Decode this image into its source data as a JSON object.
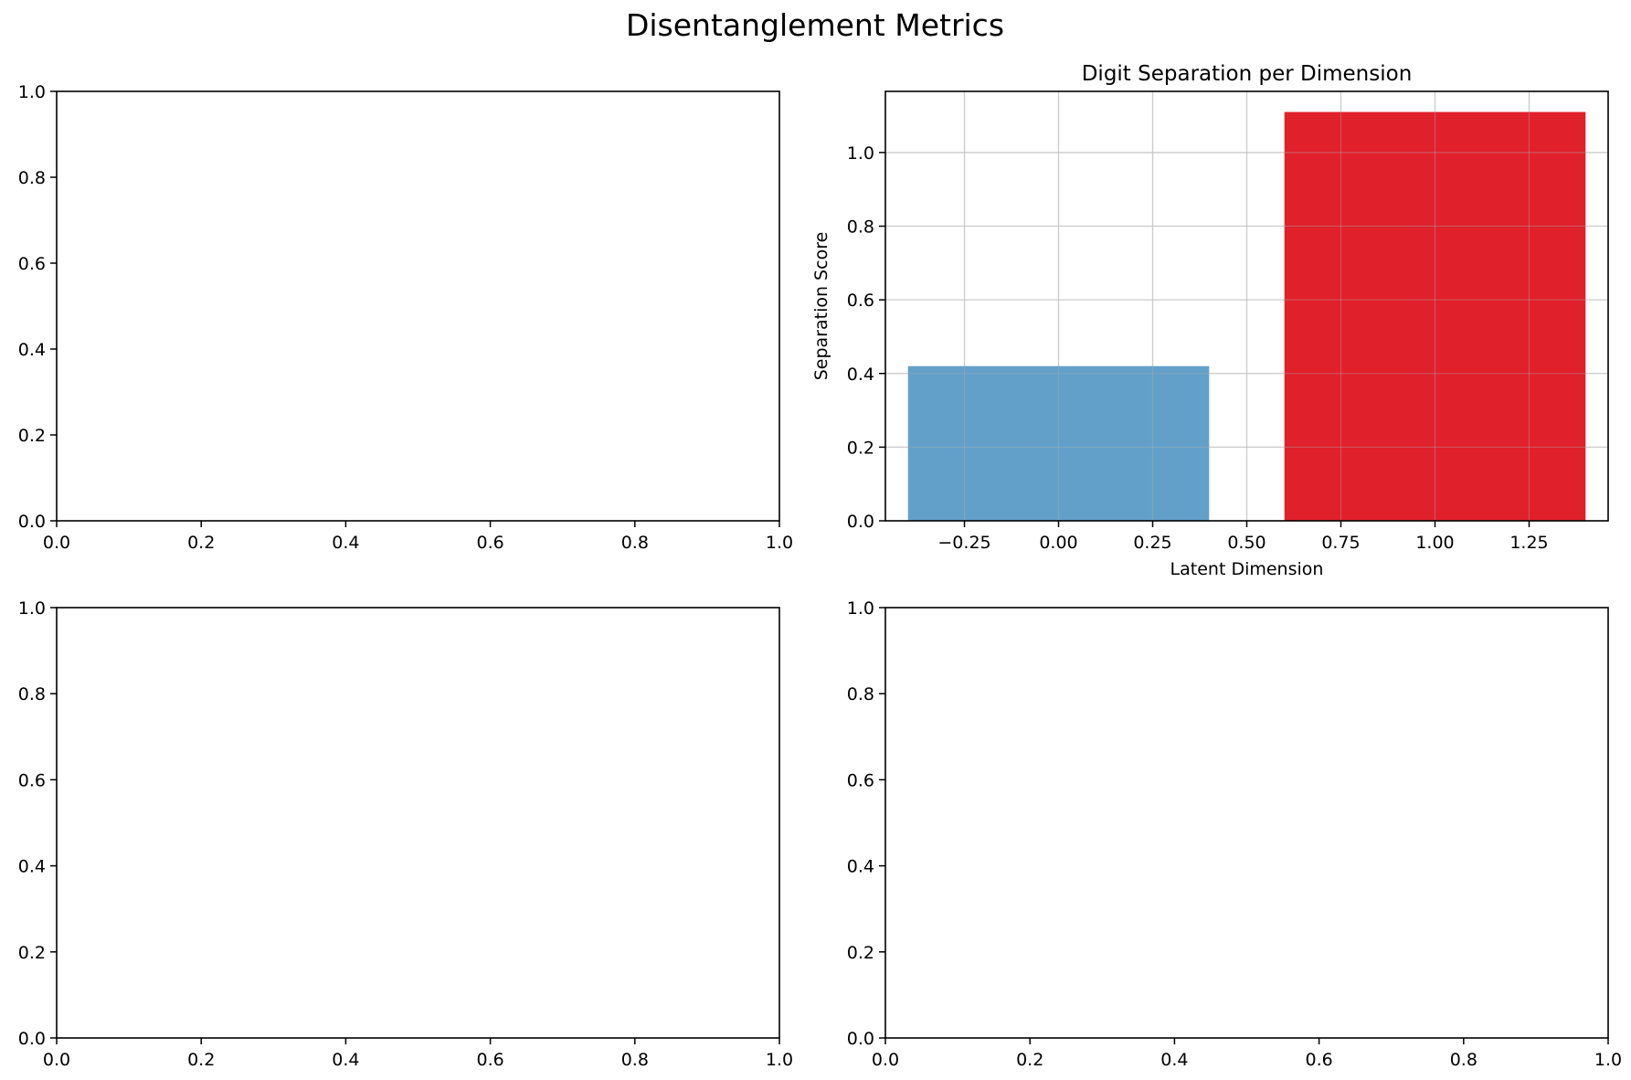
{
  "figure": {
    "title": "Disentanglement Metrics"
  },
  "chart_data": [
    {
      "type": "empty",
      "title": "",
      "xlabel": "",
      "ylabel": "",
      "xlim": [
        0,
        1
      ],
      "ylim": [
        0,
        1
      ],
      "xticks": [
        "0.0",
        "0.2",
        "0.4",
        "0.6",
        "0.8",
        "1.0"
      ],
      "yticks": [
        "0.0",
        "0.2",
        "0.4",
        "0.6",
        "0.8",
        "1.0"
      ],
      "grid": false
    },
    {
      "type": "bar",
      "title": "Digit Separation per Dimension",
      "xlabel": "Latent Dimension",
      "ylabel": "Separation Score",
      "xlim": [
        -0.46,
        1.46
      ],
      "ylim": [
        0,
        1.166
      ],
      "bar_width": 0.8,
      "x": [
        0,
        1
      ],
      "values": [
        0.42,
        1.11
      ],
      "colors": [
        "#62a0ca",
        "#e0202b"
      ],
      "xticks": [
        "−0.25",
        "0.00",
        "0.25",
        "0.50",
        "0.75",
        "1.00",
        "1.25"
      ],
      "xtick_values": [
        -0.25,
        0,
        0.25,
        0.5,
        0.75,
        1.0,
        1.25
      ],
      "yticks": [
        "0.0",
        "0.2",
        "0.4",
        "0.6",
        "0.8",
        "1.0"
      ],
      "ytick_values": [
        0,
        0.2,
        0.4,
        0.6,
        0.8,
        1.0
      ],
      "grid": true
    },
    {
      "type": "empty",
      "title": "",
      "xlabel": "",
      "ylabel": "",
      "xlim": [
        0,
        1
      ],
      "ylim": [
        0,
        1
      ],
      "xticks": [
        "0.0",
        "0.2",
        "0.4",
        "0.6",
        "0.8",
        "1.0"
      ],
      "yticks": [
        "0.0",
        "0.2",
        "0.4",
        "0.6",
        "0.8",
        "1.0"
      ],
      "grid": false
    },
    {
      "type": "empty",
      "title": "",
      "xlabel": "",
      "ylabel": "",
      "xlim": [
        0,
        1
      ],
      "ylim": [
        0,
        1
      ],
      "xticks": [
        "0.0",
        "0.2",
        "0.4",
        "0.6",
        "0.8",
        "1.0"
      ],
      "yticks": [
        "0.0",
        "0.2",
        "0.4",
        "0.6",
        "0.8",
        "1.0"
      ],
      "grid": false
    }
  ]
}
